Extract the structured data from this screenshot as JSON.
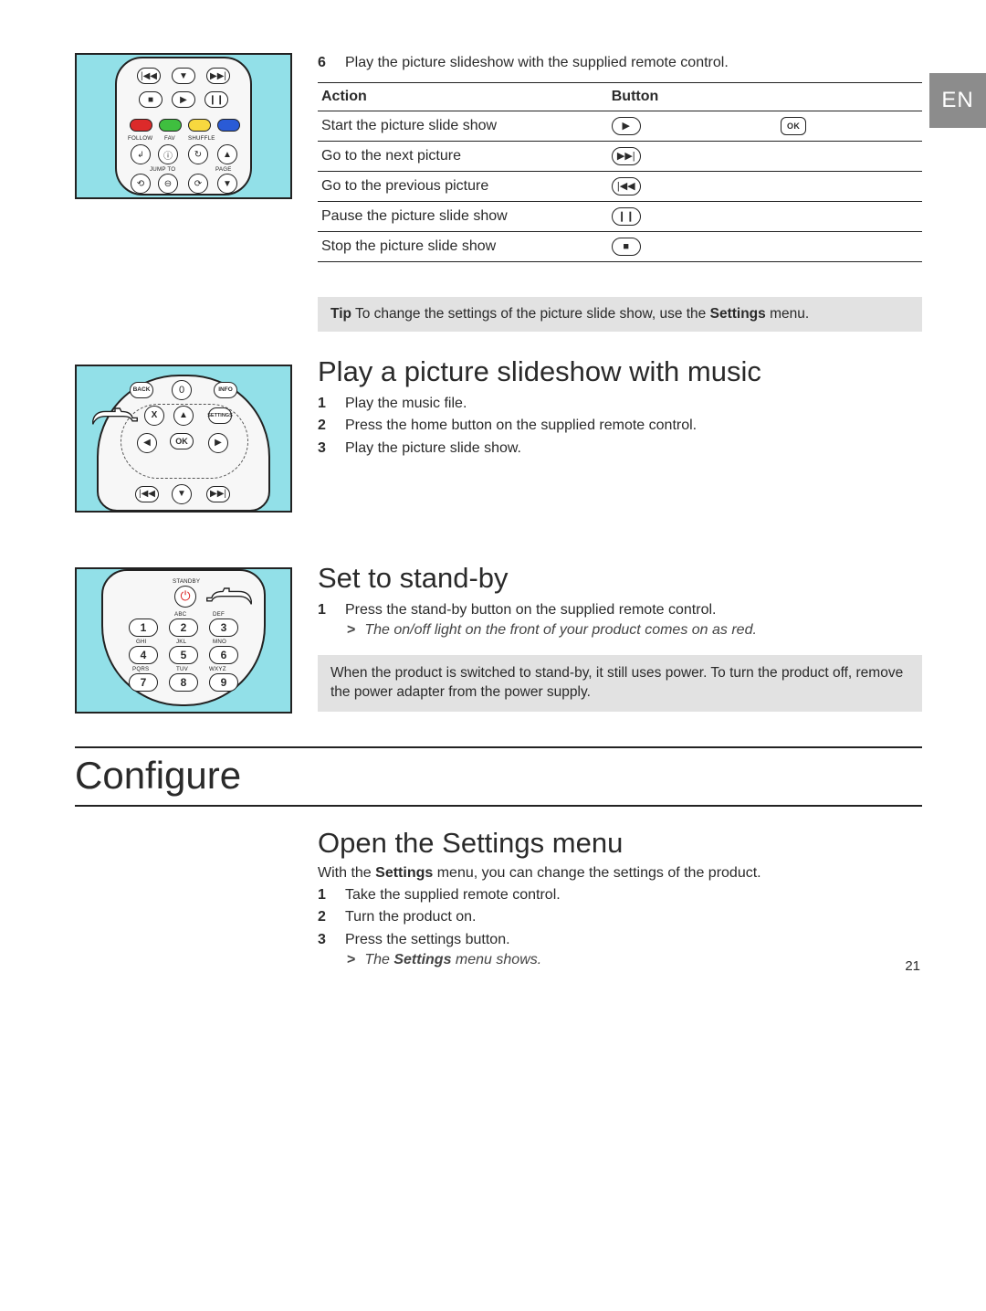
{
  "lang_tab": "EN",
  "page_number": "21",
  "colors": {
    "illus_bg": "#92e0e8",
    "tip_bg": "#e2e2e2",
    "red": "#dc2a2a",
    "green": "#3fbf3f",
    "yellow": "#f7d83f",
    "blue": "#2a5bd6"
  },
  "section1": {
    "step6_num": "6",
    "step6_text": "Play the picture slideshow with the supplied remote control.",
    "table_head_action": "Action",
    "table_head_button": "Button",
    "rows": [
      {
        "action": "Start the picture slide show",
        "icon1": "▶",
        "icon2": "OK"
      },
      {
        "action": "Go to the next picture",
        "icon1": "▶▶|",
        "icon2": ""
      },
      {
        "action": "Go to the previous picture",
        "icon1": "|◀◀",
        "icon2": ""
      },
      {
        "action": "Pause the picture slide show",
        "icon1": "❙❙",
        "icon2": ""
      },
      {
        "action": "Stop the picture slide show",
        "icon1": "■",
        "icon2": ""
      }
    ],
    "tip_label": "Tip",
    "tip_text": " To change the settings of the picture slide show, use the ",
    "tip_bold": "Settings",
    "tip_tail": " menu."
  },
  "section2": {
    "heading": "Play a picture slideshow with music",
    "steps": [
      {
        "n": "1",
        "t": "Play the music file."
      },
      {
        "n": "2",
        "t": "Press the home button on the supplied remote control."
      },
      {
        "n": "3",
        "t": "Play the picture slide show."
      }
    ]
  },
  "section3": {
    "heading": "Set to stand-by",
    "steps": [
      {
        "n": "1",
        "t": "Press the stand-by button on the supplied remote control."
      }
    ],
    "result": "The on/off light on the front of your product comes on as red.",
    "note": "When the product is switched to stand-by, it still uses power. To turn the product off, remove the power adapter from the power supply."
  },
  "chapter": "Configure",
  "section4": {
    "heading": "Open the Settings menu",
    "intro_pre": "With the ",
    "intro_bold": "Settings",
    "intro_post": " menu, you can change the settings of the product.",
    "steps": [
      {
        "n": "1",
        "t": "Take the supplied remote control."
      },
      {
        "n": "2",
        "t": "Turn the product on."
      },
      {
        "n": "3",
        "t": "Press the settings button."
      }
    ],
    "result_pre": "The ",
    "result_bold": "Settings",
    "result_post": " menu shows."
  },
  "remote1_labels": {
    "follow": "FOLLOW",
    "fav": "FAV",
    "shuffle": "SHUFFLE",
    "jump": "JUMP TO",
    "page": "PAGE"
  },
  "remote2_labels": {
    "back": "BACK",
    "info": "INFO",
    "settings": "SETTINGS",
    "ok": "OK",
    "x": "X"
  },
  "remote3_labels": {
    "standby": "STANDBY",
    "k1": "1",
    "k2": "2",
    "k3": "3",
    "k4": "4",
    "k5": "5",
    "k6": "6",
    "k7": "7",
    "k8": "8",
    "k9": "9",
    "abc": "ABC",
    "def": "DEF",
    "ghi": "GHI",
    "jkl": "JKL",
    "mno": "MNO",
    "pqrs": "PQRS",
    "tuv": "TUV",
    "wxyz": "WXYZ"
  }
}
